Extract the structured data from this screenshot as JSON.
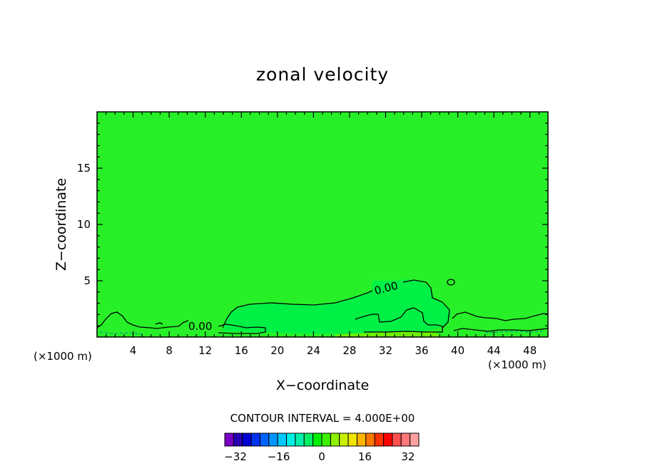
{
  "chart_data": {
    "type": "contour",
    "title": "zonal velocity",
    "xlabel": "X−coordinate",
    "ylabel": "Z−coordinate",
    "x_unit_left": "(×1000 m)",
    "x_unit_right": "(×1000 m)",
    "xlim": [
      0,
      50
    ],
    "ylim": [
      0,
      20
    ],
    "x_ticks": [
      4,
      8,
      12,
      16,
      20,
      24,
      28,
      32,
      36,
      40,
      44,
      48
    ],
    "y_ticks": [
      5,
      10,
      15
    ],
    "contour_labels": [
      "0.00",
      "0.00"
    ],
    "contour_interval_text": "CONTOUR INTERVAL = 4.000E+00",
    "colorbar": {
      "min": -36,
      "max": 36,
      "step": 4,
      "tick_values": [
        -32,
        -16,
        0,
        16,
        32
      ],
      "tick_labels": [
        "−32",
        "−16",
        "0",
        "16",
        "32"
      ],
      "colors": [
        "#7a00c8",
        "#2800b4",
        "#0000d2",
        "#0032f0",
        "#0064ff",
        "#0096ff",
        "#00c8ff",
        "#00f0e6",
        "#00f0aa",
        "#00f064",
        "#00f000",
        "#3cf000",
        "#8cf000",
        "#c8f000",
        "#f0e600",
        "#ffb400",
        "#ff7800",
        "#ff3200",
        "#ff0000",
        "#ff5050",
        "#ff7878",
        "#ffa0a0"
      ]
    },
    "fill_colors": {
      "background": "#28f028",
      "positive_region": "#00f046",
      "near_surface": "#6ef000"
    }
  }
}
